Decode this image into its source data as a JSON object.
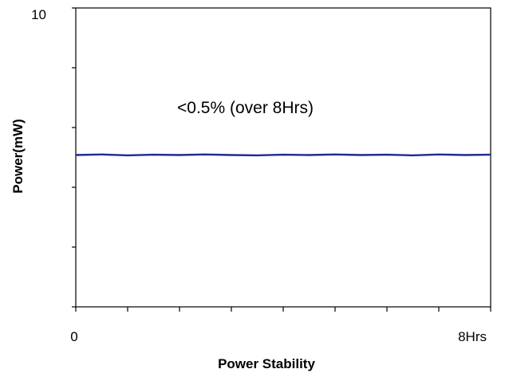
{
  "chart_data": {
    "type": "line",
    "title": "",
    "xlabel": "Power Stability",
    "ylabel": "Power(mW)",
    "xlim": [
      0,
      8
    ],
    "ylim": [
      0,
      10
    ],
    "x_tick_labels": [
      {
        "value": 0,
        "label": "0"
      },
      {
        "value": 8,
        "label": "8Hrs"
      }
    ],
    "y_tick_labels": [
      {
        "value": 10,
        "label": "10"
      }
    ],
    "x_minor_tick_count": 8,
    "y_major_tick_count": 5,
    "annotation": "<0.5% (over 8Hrs)",
    "grid": false,
    "series": [
      {
        "color": "#1f2a8c",
        "x": [
          0,
          0.5,
          1,
          1.5,
          2,
          2.5,
          3,
          3.5,
          4,
          4.5,
          5,
          5.5,
          6,
          6.5,
          7,
          7.5,
          8
        ],
        "y": [
          5.08,
          5.1,
          5.07,
          5.09,
          5.08,
          5.1,
          5.08,
          5.07,
          5.09,
          5.08,
          5.1,
          5.08,
          5.09,
          5.07,
          5.1,
          5.08,
          5.09
        ]
      }
    ]
  }
}
